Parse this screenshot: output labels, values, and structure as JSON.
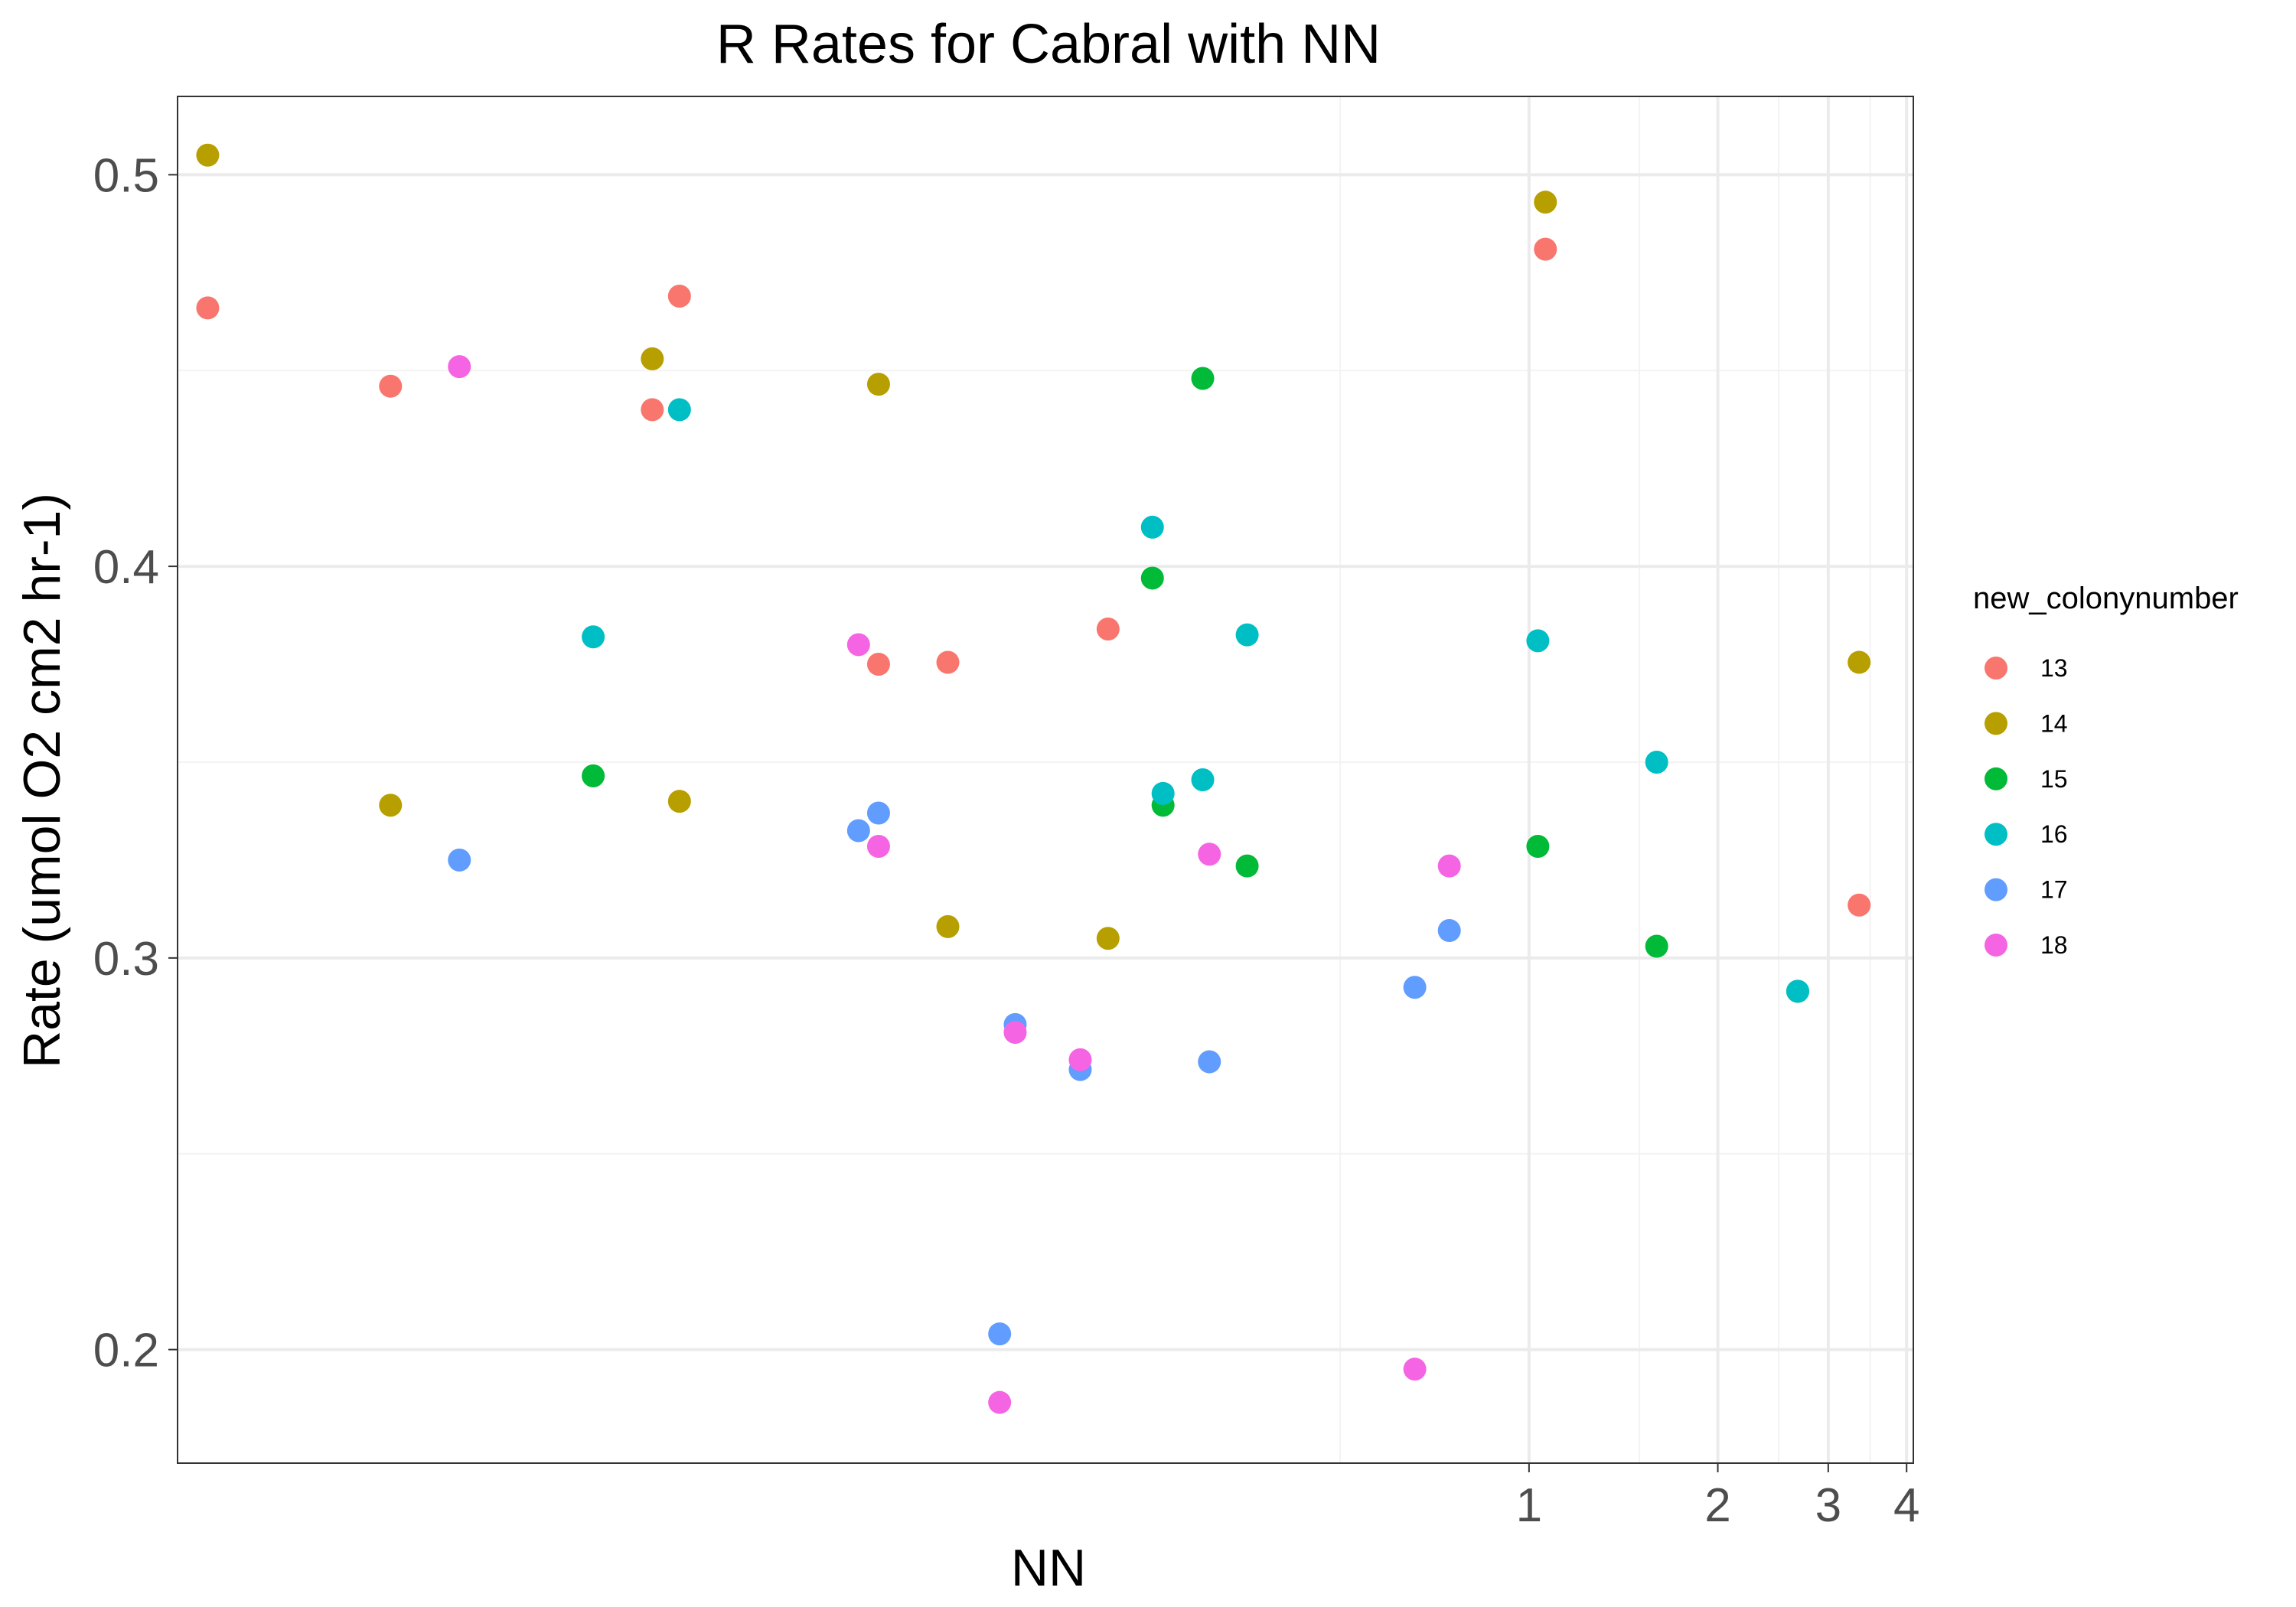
{
  "chart_data": {
    "type": "scatter",
    "title": "R Rates for Cabral with NN",
    "xlabel": "NN",
    "ylabel": "Rate (umol O2 cm2 hr-1)",
    "x_scale": "log10",
    "xlim": [
      0.007,
      4.1
    ],
    "ylim": [
      0.171,
      0.52
    ],
    "x_ticks": [
      1,
      2,
      3,
      4
    ],
    "y_ticks": [
      0.2,
      0.3,
      0.4,
      0.5
    ],
    "y_tick_labels": [
      "0.2",
      "0.3",
      "0.4",
      "0.5"
    ],
    "legend_title": "new_colonynumber",
    "legend_position": "right",
    "grid": true,
    "series": [
      {
        "name": "13",
        "color": "#F8766D",
        "points": [
          {
            "x": 0.00782,
            "y": 0.466
          },
          {
            "x": 0.0153,
            "y": 0.446
          },
          {
            "x": 0.04,
            "y": 0.44
          },
          {
            "x": 0.0442,
            "y": 0.469
          },
          {
            "x": 0.0918,
            "y": 0.375
          },
          {
            "x": 0.1184,
            "y": 0.3755
          },
          {
            "x": 0.2132,
            "y": 0.384
          },
          {
            "x": 1.062,
            "y": 0.481
          },
          {
            "x": 3.36,
            "y": 0.3135
          }
        ]
      },
      {
        "name": "14",
        "color": "#B79F00",
        "points": [
          {
            "x": 0.00782,
            "y": 0.505
          },
          {
            "x": 0.0153,
            "y": 0.339
          },
          {
            "x": 0.04,
            "y": 0.453
          },
          {
            "x": 0.0442,
            "y": 0.34
          },
          {
            "x": 0.0918,
            "y": 0.4465
          },
          {
            "x": 0.1184,
            "y": 0.308
          },
          {
            "x": 0.2132,
            "y": 0.305
          },
          {
            "x": 1.062,
            "y": 0.493
          },
          {
            "x": 3.36,
            "y": 0.3755
          }
        ]
      },
      {
        "name": "15",
        "color": "#00BA38",
        "points": [
          {
            "x": 0.0322,
            "y": 0.3465
          },
          {
            "x": 0.2509,
            "y": 0.397
          },
          {
            "x": 0.2609,
            "y": 0.339
          },
          {
            "x": 0.3018,
            "y": 0.448
          },
          {
            "x": 0.3553,
            "y": 0.3235
          },
          {
            "x": 1.033,
            "y": 0.3285
          },
          {
            "x": 1.598,
            "y": 0.303
          },
          {
            "x": 2.682,
            "y": 0.2915
          }
        ]
      },
      {
        "name": "16",
        "color": "#00BFC4",
        "points": [
          {
            "x": 0.0322,
            "y": 0.382
          },
          {
            "x": 0.0442,
            "y": 0.44
          },
          {
            "x": 0.2509,
            "y": 0.41
          },
          {
            "x": 0.2609,
            "y": 0.342
          },
          {
            "x": 0.3018,
            "y": 0.3455
          },
          {
            "x": 0.3553,
            "y": 0.3825
          },
          {
            "x": 1.033,
            "y": 0.381
          },
          {
            "x": 1.598,
            "y": 0.35
          },
          {
            "x": 2.682,
            "y": 0.2915
          }
        ]
      },
      {
        "name": "17",
        "color": "#619CFF",
        "points": [
          {
            "x": 0.0197,
            "y": 0.325
          },
          {
            "x": 0.0853,
            "y": 0.3325
          },
          {
            "x": 0.0918,
            "y": 0.337
          },
          {
            "x": 0.1432,
            "y": 0.204
          },
          {
            "x": 0.1516,
            "y": 0.283
          },
          {
            "x": 0.1925,
            "y": 0.2715
          },
          {
            "x": 0.3093,
            "y": 0.2735
          },
          {
            "x": 0.6575,
            "y": 0.2925
          },
          {
            "x": 0.7463,
            "y": 0.307
          }
        ]
      },
      {
        "name": "18",
        "color": "#F564E3",
        "points": [
          {
            "x": 0.0197,
            "y": 0.451
          },
          {
            "x": 0.0853,
            "y": 0.38
          },
          {
            "x": 0.0918,
            "y": 0.3285
          },
          {
            "x": 0.1432,
            "y": 0.1865
          },
          {
            "x": 0.1516,
            "y": 0.281
          },
          {
            "x": 0.1925,
            "y": 0.274
          },
          {
            "x": 0.3093,
            "y": 0.3265
          },
          {
            "x": 0.6575,
            "y": 0.195
          },
          {
            "x": 0.7463,
            "y": 0.3235
          }
        ]
      }
    ]
  }
}
